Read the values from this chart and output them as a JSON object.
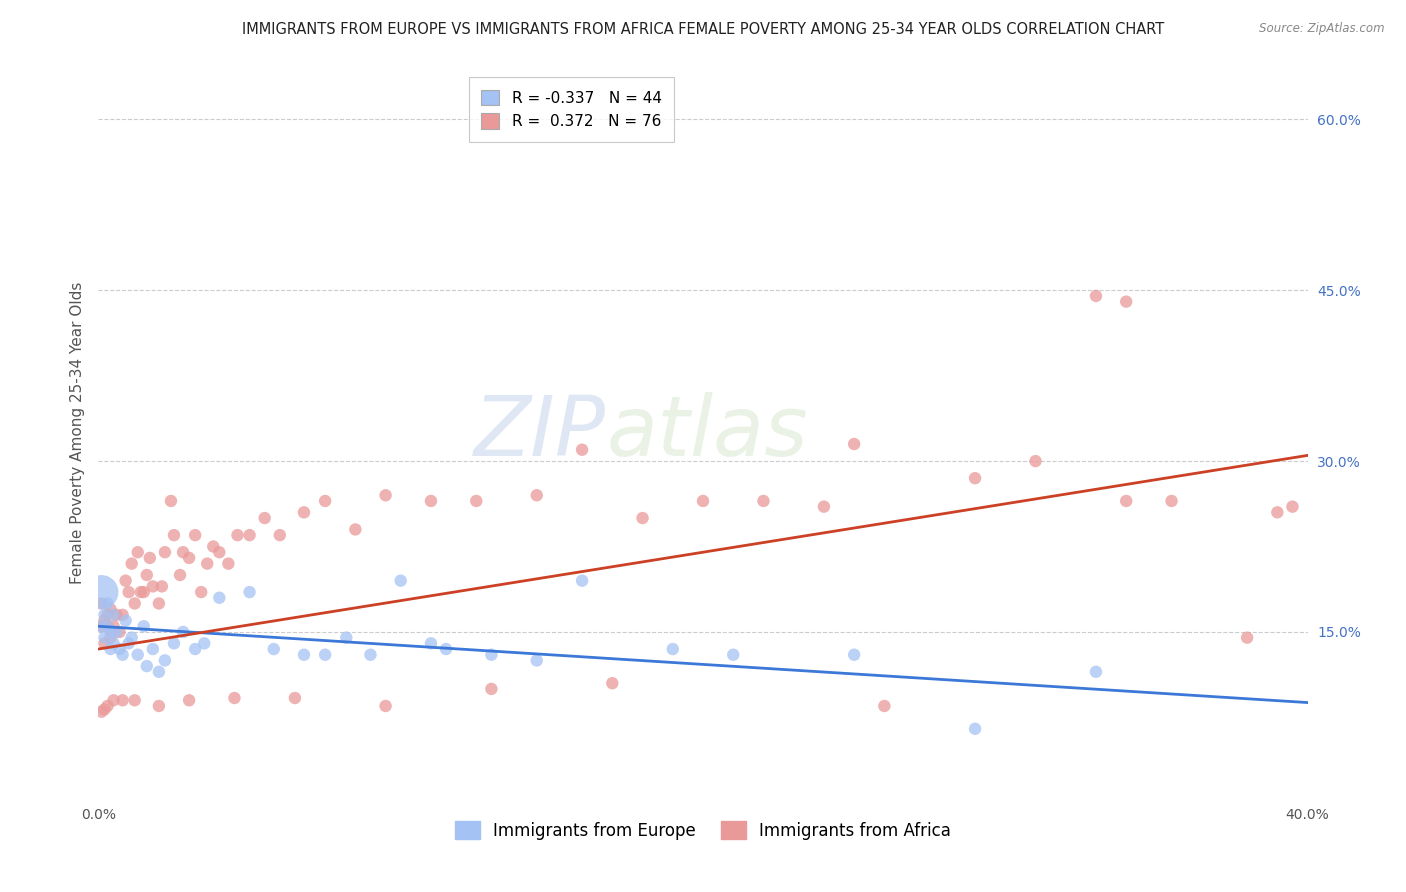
{
  "title": "IMMIGRANTS FROM EUROPE VS IMMIGRANTS FROM AFRICA FEMALE POVERTY AMONG 25-34 YEAR OLDS CORRELATION CHART",
  "source": "Source: ZipAtlas.com",
  "ylabel": "Female Poverty Among 25-34 Year Olds",
  "xlim": [
    0.0,
    0.4
  ],
  "ylim": [
    0.0,
    0.65
  ],
  "watermark_zip": "ZIP",
  "watermark_atlas": "atlas",
  "legend_europe_label": "R = -0.337   N = 44",
  "legend_africa_label": "R =  0.372   N = 76",
  "europe_color": "#a4c2f4",
  "africa_color": "#ea9999",
  "europe_line_color": "#3c78d8",
  "africa_line_color": "#cc4125",
  "background_color": "#ffffff",
  "grid_color": "#cccccc",
  "title_fontsize": 10.5,
  "axis_label_fontsize": 11,
  "tick_fontsize": 10,
  "legend_fontsize": 11,
  "europe_line_y0": 0.155,
  "europe_line_y1": 0.088,
  "africa_line_y0": 0.135,
  "africa_line_y1": 0.305,
  "europe_scatter_x": [
    0.001,
    0.001,
    0.002,
    0.002,
    0.003,
    0.003,
    0.004,
    0.004,
    0.005,
    0.005,
    0.006,
    0.007,
    0.008,
    0.009,
    0.01,
    0.011,
    0.013,
    0.015,
    0.016,
    0.018,
    0.02,
    0.022,
    0.025,
    0.028,
    0.032,
    0.035,
    0.04,
    0.05,
    0.058,
    0.068,
    0.075,
    0.082,
    0.09,
    0.1,
    0.11,
    0.115,
    0.13,
    0.145,
    0.16,
    0.19,
    0.21,
    0.25,
    0.29,
    0.33
  ],
  "europe_scatter_y": [
    0.185,
    0.155,
    0.165,
    0.145,
    0.155,
    0.175,
    0.15,
    0.135,
    0.165,
    0.14,
    0.15,
    0.135,
    0.13,
    0.16,
    0.14,
    0.145,
    0.13,
    0.155,
    0.12,
    0.135,
    0.115,
    0.125,
    0.14,
    0.15,
    0.135,
    0.14,
    0.18,
    0.185,
    0.135,
    0.13,
    0.13,
    0.145,
    0.13,
    0.195,
    0.14,
    0.135,
    0.13,
    0.125,
    0.195,
    0.135,
    0.13,
    0.13,
    0.065,
    0.115
  ],
  "europe_scatter_sizes": [
    600,
    80,
    80,
    80,
    80,
    80,
    80,
    80,
    80,
    80,
    80,
    80,
    80,
    80,
    80,
    80,
    80,
    80,
    80,
    80,
    80,
    80,
    80,
    80,
    80,
    80,
    80,
    80,
    80,
    80,
    80,
    80,
    80,
    80,
    80,
    80,
    80,
    80,
    80,
    80,
    80,
    80,
    80,
    80
  ],
  "africa_scatter_x": [
    0.001,
    0.001,
    0.002,
    0.002,
    0.003,
    0.003,
    0.004,
    0.004,
    0.005,
    0.006,
    0.007,
    0.008,
    0.009,
    0.01,
    0.011,
    0.012,
    0.013,
    0.014,
    0.015,
    0.016,
    0.017,
    0.018,
    0.02,
    0.021,
    0.022,
    0.024,
    0.025,
    0.027,
    0.028,
    0.03,
    0.032,
    0.034,
    0.036,
    0.038,
    0.04,
    0.043,
    0.046,
    0.05,
    0.055,
    0.06,
    0.068,
    0.075,
    0.085,
    0.095,
    0.11,
    0.125,
    0.145,
    0.16,
    0.18,
    0.2,
    0.22,
    0.24,
    0.26,
    0.29,
    0.31,
    0.33,
    0.34,
    0.355,
    0.38,
    0.39,
    0.395,
    0.34,
    0.25,
    0.17,
    0.13,
    0.095,
    0.065,
    0.045,
    0.03,
    0.02,
    0.012,
    0.008,
    0.005,
    0.003,
    0.002,
    0.001
  ],
  "africa_scatter_y": [
    0.175,
    0.155,
    0.16,
    0.14,
    0.165,
    0.155,
    0.17,
    0.145,
    0.155,
    0.165,
    0.15,
    0.165,
    0.195,
    0.185,
    0.21,
    0.175,
    0.22,
    0.185,
    0.185,
    0.2,
    0.215,
    0.19,
    0.175,
    0.19,
    0.22,
    0.265,
    0.235,
    0.2,
    0.22,
    0.215,
    0.235,
    0.185,
    0.21,
    0.225,
    0.22,
    0.21,
    0.235,
    0.235,
    0.25,
    0.235,
    0.255,
    0.265,
    0.24,
    0.27,
    0.265,
    0.265,
    0.27,
    0.31,
    0.25,
    0.265,
    0.265,
    0.26,
    0.085,
    0.285,
    0.3,
    0.445,
    0.265,
    0.265,
    0.145,
    0.255,
    0.26,
    0.44,
    0.315,
    0.105,
    0.1,
    0.085,
    0.092,
    0.092,
    0.09,
    0.085,
    0.09,
    0.09,
    0.09,
    0.085,
    0.082,
    0.08
  ],
  "africa_scatter_sizes": [
    80,
    80,
    80,
    80,
    80,
    80,
    80,
    80,
    80,
    80,
    80,
    80,
    80,
    80,
    80,
    80,
    80,
    80,
    80,
    80,
    80,
    80,
    80,
    80,
    80,
    80,
    80,
    80,
    80,
    80,
    80,
    80,
    80,
    80,
    80,
    80,
    80,
    80,
    80,
    80,
    80,
    80,
    80,
    80,
    80,
    80,
    80,
    80,
    80,
    80,
    80,
    80,
    80,
    80,
    80,
    80,
    80,
    80,
    80,
    80,
    80,
    80,
    80,
    80,
    80,
    80,
    80,
    80,
    80,
    80,
    80,
    80,
    80,
    80,
    80,
    80
  ]
}
